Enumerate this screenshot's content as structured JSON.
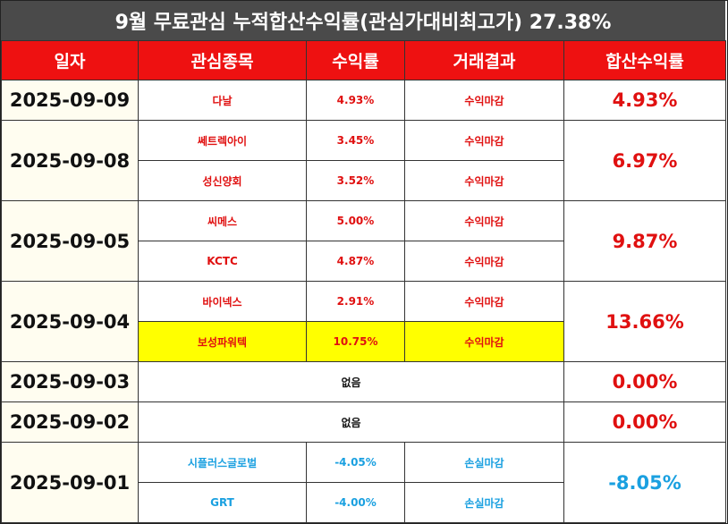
{
  "title": "9월 무료관심 누적합산수익률(관심가대비최고가) 27.38%",
  "headers": [
    "일자",
    "관심종목",
    "수익률",
    "거래결과",
    "합산수익률"
  ],
  "groups": [
    {
      "date": "2025-09-09",
      "total": "4.93%",
      "rows": [
        {
          "stock": "다날",
          "ret": "4.93%",
          "result": "수익마감"
        }
      ]
    },
    {
      "date": "2025-09-08",
      "total": "6.97%",
      "rows": [
        {
          "stock": "쎄트렉아이",
          "ret": "3.45%",
          "result": "수익마감"
        },
        {
          "stock": "성신양회",
          "ret": "3.52%",
          "result": "수익마감"
        }
      ]
    },
    {
      "date": "2025-09-05",
      "total": "9.87%",
      "rows": [
        {
          "stock": "씨메스",
          "ret": "5.00%",
          "result": "수익마감"
        },
        {
          "stock": "KCTC",
          "ret": "4.87%",
          "result": "수익마감"
        }
      ]
    },
    {
      "date": "2025-09-04",
      "total": "13.66%",
      "rows": [
        {
          "stock": "바이넥스",
          "ret": "2.91%",
          "result": "수익마감"
        },
        {
          "stock": "보성파워텍",
          "ret": "10.75%",
          "result": "수익마감"
        }
      ]
    },
    {
      "date": "2025-09-03",
      "total": "0.00%",
      "none": "없음"
    },
    {
      "date": "2025-09-02",
      "total": "0.00%",
      "none": "없음"
    },
    {
      "date": "2025-09-01",
      "total": "-8.05%",
      "rows": [
        {
          "stock": "시플러스글로벌",
          "ret": "-4.05%",
          "result": "손실마감"
        },
        {
          "stock": "GRT",
          "ret": "-4.00%",
          "result": "손실마감"
        }
      ]
    }
  ],
  "colors": {
    "header_bg": "#ee1111",
    "title_bg": "#4a4a4a",
    "profit": "#e01010",
    "loss": "#1aa0e0",
    "highlight": "#ffff00"
  }
}
